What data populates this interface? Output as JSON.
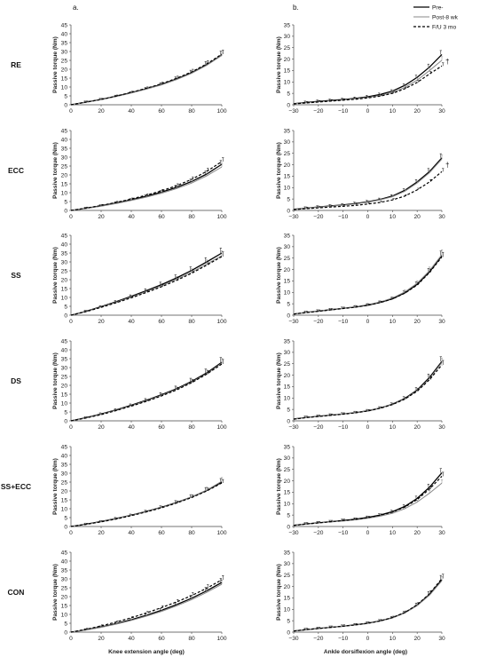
{
  "figure": {
    "panel_a_label": "a.",
    "panel_b_label": "b.",
    "ylabel": "Passive torque (Nm)",
    "left_xlabel": "Knee extension angle (deg)",
    "right_xlabel": "Ankle dorsiflexion angle (deg)",
    "legend": [
      {
        "name": "Pre-",
        "style": "solid-black"
      },
      {
        "name": "Post-8 wk",
        "style": "solid-gray"
      },
      {
        "name": "F/U 3 mo",
        "style": "dashed-black"
      }
    ],
    "significance_marker": "†",
    "row_labels": [
      "RE",
      "ECC",
      "SS",
      "DS",
      "SS+ECC",
      "CON"
    ]
  },
  "chart_data": [
    {
      "type": "line",
      "group": "RE",
      "joint": "knee",
      "x": [
        0,
        10,
        20,
        30,
        40,
        50,
        60,
        70,
        80,
        90,
        100
      ],
      "xlim": [
        0,
        100
      ],
      "ylim": [
        0,
        45
      ],
      "xticks": [
        20,
        40,
        60,
        80,
        100
      ],
      "yticks": [
        0,
        5,
        10,
        15,
        20,
        25,
        30,
        35,
        40,
        45
      ],
      "series": [
        {
          "name": "Pre-",
          "values": [
            0,
            1.5,
            3,
            4.8,
            6.8,
            9,
            11.5,
            14.5,
            18,
            22.5,
            28
          ]
        },
        {
          "name": "Post-8 wk",
          "values": [
            0,
            1.4,
            2.9,
            4.6,
            6.6,
            8.8,
            11.2,
            14.2,
            17.7,
            22.2,
            27.8
          ]
        },
        {
          "name": "F/U 3 mo",
          "values": [
            0,
            1.5,
            3,
            4.9,
            7,
            9.3,
            11.8,
            14.9,
            18.5,
            23,
            28.5
          ]
        }
      ],
      "sig": false
    },
    {
      "type": "line",
      "group": "RE",
      "joint": "ankle",
      "x": [
        -30,
        -25,
        -20,
        -15,
        -10,
        -5,
        0,
        5,
        10,
        15,
        20,
        25,
        30
      ],
      "xlim": [
        -30,
        30
      ],
      "ylim": [
        0,
        35
      ],
      "xticks": [
        -30,
        -20,
        -10,
        0,
        10,
        20,
        30
      ],
      "yticks": [
        0,
        5,
        10,
        15,
        20,
        25,
        30,
        35
      ],
      "series": [
        {
          "name": "Pre-",
          "values": [
            0.5,
            1,
            1.5,
            1.9,
            2.3,
            2.8,
            3.5,
            4.5,
            6,
            8.5,
            12,
            16.5,
            22
          ]
        },
        {
          "name": "Post-8 wk",
          "values": [
            0.5,
            0.9,
            1.3,
            1.7,
            2.1,
            2.6,
            3.2,
            4.1,
            5.4,
            7.6,
            10.8,
            15,
            19.5
          ]
        },
        {
          "name": "F/U 3 mo",
          "values": [
            0.4,
            0.8,
            1.2,
            1.6,
            2,
            2.4,
            3,
            3.8,
            5,
            7,
            9.8,
            13.5,
            17
          ]
        }
      ],
      "sig": true
    },
    {
      "type": "line",
      "group": "ECC",
      "joint": "knee",
      "x": [
        0,
        10,
        20,
        30,
        40,
        50,
        60,
        70,
        80,
        90,
        100
      ],
      "xlim": [
        0,
        100
      ],
      "ylim": [
        0,
        45
      ],
      "xticks": [
        20,
        40,
        60,
        80,
        100
      ],
      "yticks": [
        0,
        5,
        10,
        15,
        20,
        25,
        30,
        35,
        40,
        45
      ],
      "series": [
        {
          "name": "Pre-",
          "values": [
            0,
            1.2,
            2.6,
            4.2,
            6,
            8,
            10.3,
            13,
            16.3,
            20.5,
            26
          ]
        },
        {
          "name": "Post-8 wk",
          "values": [
            0,
            1.1,
            2.4,
            3.9,
            5.6,
            7.5,
            9.7,
            12.3,
            15.4,
            19.5,
            24.5
          ]
        },
        {
          "name": "F/U 3 mo",
          "values": [
            0,
            1.3,
            2.8,
            4.5,
            6.4,
            8.6,
            11,
            13.9,
            17.5,
            22,
            27.5
          ]
        }
      ],
      "sig": false
    },
    {
      "type": "line",
      "group": "ECC",
      "joint": "ankle",
      "x": [
        -30,
        -25,
        -20,
        -15,
        -10,
        -5,
        0,
        5,
        10,
        15,
        20,
        25,
        30
      ],
      "xlim": [
        -30,
        30
      ],
      "ylim": [
        0,
        35
      ],
      "xticks": [
        -30,
        -20,
        -10,
        0,
        10,
        20,
        30
      ],
      "yticks": [
        0,
        5,
        10,
        15,
        20,
        25,
        30,
        35
      ],
      "series": [
        {
          "name": "Pre-",
          "values": [
            0.5,
            1,
            1.5,
            2,
            2.4,
            3,
            3.8,
            4.8,
            6.3,
            8.8,
            12.5,
            17,
            23
          ]
        },
        {
          "name": "Post-8 wk",
          "values": [
            0.5,
            1,
            1.4,
            1.9,
            2.3,
            2.8,
            3.6,
            4.6,
            6,
            8.4,
            12,
            16.5,
            22.5
          ]
        },
        {
          "name": "F/U 3 mo",
          "values": [
            0.4,
            0.8,
            1.1,
            1.5,
            1.8,
            2.2,
            2.8,
            3.5,
            4.6,
            6.3,
            9,
            12.5,
            17
          ]
        }
      ],
      "sig": true
    },
    {
      "type": "line",
      "group": "SS",
      "joint": "knee",
      "x": [
        0,
        10,
        20,
        30,
        40,
        50,
        60,
        70,
        80,
        90,
        100
      ],
      "xlim": [
        0,
        100
      ],
      "ylim": [
        0,
        45
      ],
      "xticks": [
        20,
        40,
        60,
        80,
        100
      ],
      "yticks": [
        0,
        5,
        10,
        15,
        20,
        25,
        30,
        35,
        40,
        45
      ],
      "series": [
        {
          "name": "Pre-",
          "values": [
            0,
            2.2,
            4.8,
            7.6,
            10.6,
            13.8,
            17.2,
            21,
            25.2,
            30,
            35
          ]
        },
        {
          "name": "Post-8 wk",
          "values": [
            0,
            2.1,
            4.6,
            7.3,
            10.2,
            13.3,
            16.6,
            20.2,
            24.2,
            28.8,
            33.5
          ]
        },
        {
          "name": "F/U 3 mo",
          "values": [
            0,
            2,
            4.4,
            7,
            9.8,
            12.8,
            16,
            19.6,
            23.6,
            28.2,
            33
          ]
        }
      ],
      "sig": false
    },
    {
      "type": "line",
      "group": "SS",
      "joint": "ankle",
      "x": [
        -30,
        -25,
        -20,
        -15,
        -10,
        -5,
        0,
        5,
        10,
        15,
        20,
        25,
        30
      ],
      "xlim": [
        -30,
        30
      ],
      "ylim": [
        0,
        35
      ],
      "xticks": [
        -30,
        -20,
        -10,
        0,
        10,
        20,
        30
      ],
      "yticks": [
        0,
        5,
        10,
        15,
        20,
        25,
        30,
        35
      ],
      "series": [
        {
          "name": "Pre-",
          "values": [
            0.5,
            1.2,
            1.8,
            2.4,
            3,
            3.6,
            4.4,
            5.6,
            7.2,
            9.8,
            13.5,
            19,
            26
          ]
        },
        {
          "name": "Post-8 wk",
          "values": [
            0.5,
            1.2,
            1.8,
            2.4,
            3,
            3.7,
            4.6,
            5.8,
            7.5,
            10.2,
            14,
            19.5,
            26.5
          ]
        },
        {
          "name": "F/U 3 mo",
          "values": [
            0.5,
            1.1,
            1.7,
            2.3,
            2.9,
            3.5,
            4.3,
            5.5,
            7.1,
            9.6,
            13.2,
            18.7,
            25.5
          ]
        }
      ],
      "sig": false
    },
    {
      "type": "line",
      "group": "DS",
      "joint": "knee",
      "x": [
        0,
        10,
        20,
        30,
        40,
        50,
        60,
        70,
        80,
        90,
        100
      ],
      "xlim": [
        0,
        100
      ],
      "ylim": [
        0,
        45
      ],
      "xticks": [
        20,
        40,
        60,
        80,
        100
      ],
      "yticks": [
        0,
        5,
        10,
        15,
        20,
        25,
        30,
        35,
        40,
        45
      ],
      "series": [
        {
          "name": "Pre-",
          "values": [
            0,
            1.8,
            3.9,
            6.2,
            8.8,
            11.6,
            14.7,
            18.1,
            22.2,
            27,
            33
          ]
        },
        {
          "name": "Post-8 wk",
          "values": [
            0,
            1.7,
            3.7,
            6,
            8.5,
            11.3,
            14.3,
            17.7,
            21.8,
            26.5,
            32.5
          ]
        },
        {
          "name": "F/U 3 mo",
          "values": [
            0,
            1.6,
            3.5,
            5.8,
            8.3,
            11,
            14,
            17.4,
            21.5,
            26.3,
            32
          ]
        }
      ],
      "sig": false
    },
    {
      "type": "line",
      "group": "DS",
      "joint": "ankle",
      "x": [
        -30,
        -25,
        -20,
        -15,
        -10,
        -5,
        0,
        5,
        10,
        15,
        20,
        25,
        30
      ],
      "xlim": [
        -30,
        30
      ],
      "ylim": [
        0,
        35
      ],
      "xticks": [
        -30,
        -20,
        -10,
        0,
        10,
        20,
        30
      ],
      "yticks": [
        0,
        5,
        10,
        15,
        20,
        25,
        30,
        35
      ],
      "series": [
        {
          "name": "Pre-",
          "values": [
            0.8,
            1.5,
            2,
            2.5,
            3,
            3.6,
            4.4,
            5.6,
            7.3,
            9.8,
            13.5,
            19,
            26
          ]
        },
        {
          "name": "Post-8 wk",
          "values": [
            0.8,
            1.5,
            2,
            2.5,
            3,
            3.6,
            4.4,
            5.6,
            7.2,
            9.6,
            13.2,
            18.5,
            25.5
          ]
        },
        {
          "name": "F/U 3 mo",
          "values": [
            0.7,
            1.4,
            1.9,
            2.4,
            2.9,
            3.5,
            4.3,
            5.5,
            7.1,
            9.5,
            13,
            18,
            24.5
          ]
        }
      ],
      "sig": false
    },
    {
      "type": "line",
      "group": "SS+ECC",
      "joint": "knee",
      "x": [
        0,
        10,
        20,
        30,
        40,
        50,
        60,
        70,
        80,
        90,
        100
      ],
      "xlim": [
        0,
        100
      ],
      "ylim": [
        0,
        45
      ],
      "xticks": [
        20,
        40,
        60,
        80,
        100
      ],
      "yticks": [
        0,
        5,
        10,
        15,
        20,
        25,
        30,
        35,
        40,
        45
      ],
      "series": [
        {
          "name": "Pre-",
          "values": [
            0,
            1.3,
            2.8,
            4.5,
            6.4,
            8.5,
            10.8,
            13.5,
            16.6,
            20.3,
            25
          ]
        },
        {
          "name": "Post-8 wk",
          "values": [
            0,
            1.2,
            2.7,
            4.4,
            6.3,
            8.4,
            10.7,
            13.4,
            16.6,
            20.5,
            25.5
          ]
        },
        {
          "name": "F/U 3 mo",
          "values": [
            0,
            1.2,
            2.6,
            4.2,
            6.1,
            8.2,
            10.5,
            13.2,
            16.3,
            20,
            24.5
          ]
        }
      ],
      "sig": false
    },
    {
      "type": "line",
      "group": "SS+ECC",
      "joint": "ankle",
      "x": [
        -30,
        -25,
        -20,
        -15,
        -10,
        -5,
        0,
        5,
        10,
        15,
        20,
        25,
        30
      ],
      "xlim": [
        -30,
        30
      ],
      "ylim": [
        0,
        35
      ],
      "xticks": [
        -30,
        -20,
        -10,
        0,
        10,
        20,
        30
      ],
      "yticks": [
        0,
        5,
        10,
        15,
        20,
        25,
        30,
        35
      ],
      "series": [
        {
          "name": "Pre-",
          "values": [
            0.5,
            1.1,
            1.6,
            2.1,
            2.6,
            3.2,
            4,
            5,
            6.5,
            8.8,
            12.3,
            17.2,
            23.5
          ]
        },
        {
          "name": "Post-8 wk",
          "values": [
            0.5,
            1,
            1.5,
            2,
            2.4,
            2.9,
            3.6,
            4.5,
            5.8,
            7.8,
            10.7,
            14.6,
            19
          ]
        },
        {
          "name": "F/U 3 mo",
          "values": [
            0.5,
            1.1,
            1.6,
            2.1,
            2.6,
            3.1,
            3.9,
            4.9,
            6.3,
            8.5,
            11.8,
            16.4,
            22
          ]
        }
      ],
      "sig": false
    },
    {
      "type": "line",
      "group": "CON",
      "joint": "knee",
      "x": [
        0,
        10,
        20,
        30,
        40,
        50,
        60,
        70,
        80,
        90,
        100
      ],
      "xlim": [
        0,
        100
      ],
      "ylim": [
        0,
        45
      ],
      "xticks": [
        20,
        40,
        60,
        80,
        100
      ],
      "yticks": [
        0,
        5,
        10,
        15,
        20,
        25,
        30,
        35,
        40,
        45
      ],
      "series": [
        {
          "name": "Pre-",
          "values": [
            0,
            1.3,
            2.9,
            4.8,
            7,
            9.5,
            12.3,
            15.5,
            19.1,
            23.3,
            28
          ]
        },
        {
          "name": "Post-8 wk",
          "values": [
            0,
            1.2,
            2.7,
            4.5,
            6.6,
            9,
            11.7,
            14.8,
            18.3,
            22.4,
            27
          ]
        },
        {
          "name": "F/U 3 mo",
          "values": [
            0,
            1.6,
            3.5,
            5.7,
            8.1,
            10.8,
            13.8,
            17,
            20.6,
            24.7,
            29.5
          ]
        }
      ],
      "sig": false
    },
    {
      "type": "line",
      "group": "CON",
      "joint": "ankle",
      "x": [
        -30,
        -25,
        -20,
        -15,
        -10,
        -5,
        0,
        5,
        10,
        15,
        20,
        25,
        30
      ],
      "xlim": [
        -30,
        30
      ],
      "ylim": [
        0,
        35
      ],
      "xticks": [
        -30,
        -20,
        -10,
        0,
        10,
        20,
        30
      ],
      "yticks": [
        0,
        5,
        10,
        15,
        20,
        25,
        30,
        35
      ],
      "series": [
        {
          "name": "Pre-",
          "values": [
            0.5,
            1.1,
            1.6,
            2.1,
            2.6,
            3.2,
            3.9,
            4.9,
            6.3,
            8.5,
            11.8,
            16.5,
            23
          ]
        },
        {
          "name": "Post-8 wk",
          "values": [
            0.5,
            1.1,
            1.6,
            2.1,
            2.6,
            3.1,
            3.8,
            4.8,
            6.2,
            8.4,
            11.6,
            16.2,
            22.5
          ]
        },
        {
          "name": "F/U 3 mo",
          "values": [
            0.5,
            1.1,
            1.6,
            2.1,
            2.6,
            3.2,
            3.9,
            4.9,
            6.4,
            8.6,
            12,
            16.8,
            23.5
          ]
        }
      ],
      "sig": false
    }
  ]
}
